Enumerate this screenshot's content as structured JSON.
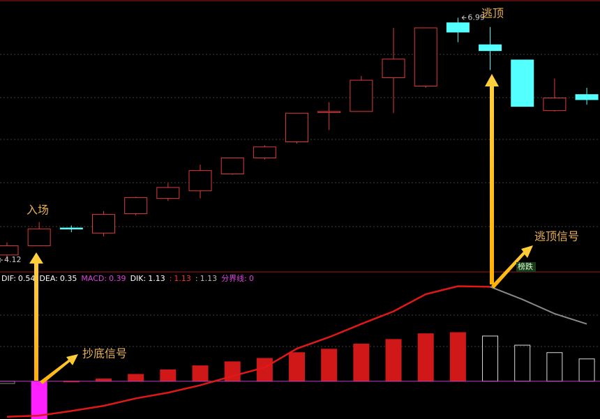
{
  "chart_data": [
    {
      "type": "candlestick",
      "open": [
        4.18,
        4.29,
        4.5,
        4.44,
        4.67,
        4.85,
        4.94,
        5.14,
        5.33,
        5.52,
        5.88,
        5.88,
        6.28,
        6.18,
        6.93,
        6.67,
        6.49,
        5.89,
        6.08
      ],
      "close": [
        4.29,
        4.49,
        4.49,
        4.66,
        4.86,
        4.98,
        5.18,
        5.33,
        5.46,
        5.86,
        5.88,
        6.25,
        6.5,
        6.87,
        6.82,
        6.6,
        5.94,
        6.04,
        6.02
      ],
      "high": [
        4.33,
        4.57,
        4.53,
        4.7,
        4.87,
        5.03,
        5.25,
        5.33,
        5.48,
        5.86,
        5.99,
        6.3,
        6.87,
        6.87,
        6.99,
        6.88,
        6.49,
        6.27,
        6.16
      ],
      "low": [
        4.12,
        4.29,
        4.45,
        4.4,
        4.65,
        4.82,
        4.85,
        5.13,
        5.31,
        5.5,
        5.66,
        5.88,
        5.86,
        6.16,
        6.7,
        6.37,
        5.94,
        5.88,
        5.96
      ],
      "up_color": "#e03a3a",
      "down_color": "#54ffff",
      "ylim": [
        3.98,
        7.2
      ],
      "price_marks": [
        {
          "value": 4.12,
          "index": 0
        },
        {
          "value": 6.99,
          "index": 14
        }
      ],
      "annotations": [
        "入场",
        "逃顶",
        "逃顶信号",
        "榜跌"
      ]
    },
    {
      "type": "macd",
      "values": [
        -0.04,
        -0.66,
        0,
        0.04,
        0.12,
        0.2,
        0.27,
        0.34,
        0.4,
        0.5,
        0.56,
        0.65,
        0.73,
        0.83,
        0.85,
        0.79,
        0.63,
        0.5,
        0.39
      ],
      "bar_colors": [
        "#888888",
        "#ff20ff",
        "#d01818",
        "#d01818",
        "#d01818",
        "#d01818",
        "#d01818",
        "#d01818",
        "#d01818",
        "#d01818",
        "#d01818",
        "#d01818",
        "#d01818",
        "#d01818",
        "#d01818",
        "#dddddd",
        "#dddddd",
        "#dddddd",
        "#dddddd"
      ],
      "hollow_from": 15,
      "series": [
        {
          "color": "#e01818",
          "values": [
            -0.62,
            -0.6,
            -0.52,
            -0.43,
            -0.3,
            -0.2,
            -0.07,
            0.09,
            0.24,
            0.57,
            0.77,
            1.0,
            1.22,
            1.52,
            1.66,
            1.65,
            null,
            null,
            null
          ]
        },
        {
          "color": "#8a8a8a",
          "values": [
            null,
            null,
            null,
            null,
            null,
            null,
            null,
            null,
            null,
            null,
            null,
            null,
            null,
            null,
            null,
            1.65,
            1.43,
            1.18,
            1.0
          ]
        }
      ],
      "ylim": [
        -0.66,
        1.91
      ],
      "zero_line": 0,
      "legend": [
        {
          "label": "DIF:",
          "value": 0.54,
          "color": "#ffffff"
        },
        {
          "label": "DEA:",
          "value": 0.35,
          "color": "#ffffff"
        },
        {
          "label": "MACD:",
          "value": 0.39,
          "color": "#e040e0"
        },
        {
          "label": "DIK:",
          "value": 1.13,
          "color": "#ffffff"
        },
        {
          "label": ":",
          "value": 1.13,
          "color": "#ff3030"
        },
        {
          "label": ":",
          "value": 1.13,
          "color": "#bbbbbb"
        },
        {
          "label": "分界线:",
          "value": 0.0,
          "color": "#e040e0"
        }
      ],
      "annotations": [
        "抄底信号"
      ]
    }
  ]
}
